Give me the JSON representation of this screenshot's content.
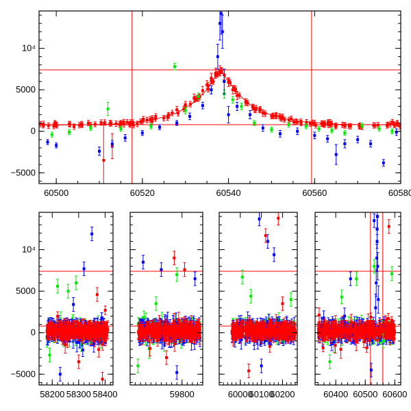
{
  "chart_data": [
    {
      "type": "scatter",
      "title": "",
      "xlabel": "",
      "ylabel": "",
      "xlim": [
        60496,
        60580
      ],
      "ylim": [
        -6300,
        14500
      ],
      "x_ticks": [
        60500,
        60520,
        60540,
        60560,
        60580
      ],
      "y_ticks": [
        {
          "value": -5000,
          "label": "−5000"
        },
        {
          "value": 0,
          "label": "0"
        },
        {
          "value": 5000,
          "label": "5000"
        },
        {
          "value": 10000,
          "label": "10⁴"
        }
      ],
      "hlines": [
        7400,
        800
      ],
      "vlines": [
        60517.6,
        60559.3
      ],
      "line_color": "#ff0000",
      "model_curve": {
        "x": [
          60496,
          60505,
          60515,
          60522,
          60528,
          60532,
          60535,
          60537,
          60538.3,
          60540,
          60542,
          60545,
          60550,
          60556,
          60565,
          60580
        ],
        "y": [
          750,
          770,
          900,
          1300,
          2200,
          3500,
          5000,
          6600,
          7300,
          6000,
          4600,
          3200,
          1900,
          1200,
          850,
          760
        ]
      },
      "series": [
        {
          "color": "#ff0000",
          "x": [
            60497,
            60500,
            60503,
            60506,
            60509,
            60511,
            60513,
            60515,
            60517,
            60520,
            60523,
            60526,
            60528,
            60530,
            60532,
            60534,
            60535,
            60536,
            60537,
            60538,
            60539,
            60540,
            60541,
            60542,
            60544,
            60546,
            60548,
            60550,
            60553,
            60556,
            60559,
            60562,
            60565,
            60568,
            60571,
            60574,
            60577
          ],
          "y": [
            700,
            800,
            900,
            750,
            850,
            -3500,
            -1800,
            1000,
            900,
            1200,
            1500,
            1900,
            2600,
            3200,
            4000,
            4900,
            5600,
            6400,
            7000,
            7300,
            6800,
            5900,
            5000,
            4300,
            3500,
            2700,
            2200,
            1800,
            1400,
            1100,
            900,
            850,
            700,
            600,
            500,
            700,
            800
          ],
          "yerr": [
            300,
            300,
            300,
            300,
            300,
            4500,
            1500,
            300,
            300,
            300,
            300,
            300,
            400,
            400,
            500,
            500,
            500,
            600,
            600,
            600,
            600,
            500,
            500,
            500,
            400,
            400,
            400,
            300,
            300,
            300,
            300,
            300,
            300,
            300,
            300,
            300,
            300
          ]
        },
        {
          "color": "#00ee00",
          "x": [
            60499,
            60503,
            60508,
            60512,
            60515,
            60522,
            60527.5,
            60530,
            60533,
            60536,
            60539,
            60541,
            60543,
            60546,
            60550,
            60554,
            60558,
            60561,
            60564,
            60567,
            60571,
            60575,
            60578
          ],
          "y": [
            -400,
            -100,
            400,
            2700,
            300,
            600,
            7800,
            2500,
            4200,
            5000,
            4500,
            3800,
            3000,
            1000,
            200,
            800,
            600,
            300,
            100,
            -200,
            700,
            300,
            0
          ],
          "yerr": [
            300,
            300,
            300,
            800,
            300,
            300,
            400,
            400,
            400,
            500,
            500,
            400,
            400,
            300,
            300,
            300,
            300,
            300,
            300,
            300,
            300,
            300,
            300
          ]
        },
        {
          "color": "#0000ff",
          "x": [
            60498,
            60500,
            60510,
            60513,
            60516,
            60520,
            60524,
            60528,
            60531,
            60534,
            60536,
            60537.5,
            60538,
            60538.3,
            60538.6,
            60539,
            60540,
            60542,
            60545,
            60548,
            60552,
            60556,
            60560,
            60563,
            60565,
            60567,
            60570,
            60573,
            60576,
            60579
          ],
          "y": [
            -1300,
            -1700,
            -2400,
            -1500,
            -800,
            -200,
            500,
            1000,
            1800,
            3100,
            5000,
            9000,
            13000,
            14200,
            12000,
            6000,
            2000,
            3000,
            2000,
            400,
            -300,
            0,
            -500,
            -900,
            -2800,
            -1500,
            -1000,
            -1500,
            -3800,
            -100
          ],
          "yerr": [
            300,
            300,
            500,
            400,
            400,
            300,
            300,
            300,
            400,
            400,
            500,
            1500,
            2000,
            2500,
            2000,
            1500,
            1000,
            500,
            500,
            400,
            400,
            400,
            400,
            400,
            1200,
            500,
            400,
            400,
            400,
            400
          ]
        }
      ]
    },
    {
      "type": "scatter",
      "title": "",
      "xlabel": "",
      "ylabel": "",
      "segments": [
        {
          "xlim": [
            58150,
            58430
          ],
          "x_ticks": [
            58200,
            58300,
            58400
          ]
        },
        {
          "xlim": [
            59600,
            59880
          ],
          "x_ticks": [
            59800
          ]
        },
        {
          "xlim": [
            59900,
            60270
          ],
          "x_ticks": [
            60000,
            60100,
            60200
          ]
        },
        {
          "xlim": [
            60330,
            60620
          ],
          "x_ticks": [
            60400,
            60500,
            60600
          ]
        }
      ],
      "ylim": [
        -6300,
        14500
      ],
      "y_ticks": [
        {
          "value": -5000,
          "label": "−5000"
        },
        {
          "value": 0,
          "label": "0"
        },
        {
          "value": 5000,
          "label": "5000"
        },
        {
          "value": 10000,
          "label": "10⁴"
        }
      ],
      "hlines": [
        7400,
        800
      ],
      "vlines": [
        60517.6,
        60559.3
      ],
      "line_color": "#ff0000",
      "clusters": [
        {
          "segment": 0,
          "x_from": 58180,
          "x_to": 58410,
          "y_spread": 900
        },
        {
          "segment": 1,
          "x_from": 59630,
          "x_to": 59870,
          "y_spread": 1100
        },
        {
          "segment": 2,
          "x_from": 59960,
          "x_to": 60260,
          "y_spread": 1000
        },
        {
          "segment": 3,
          "x_from": 60340,
          "x_to": 60600,
          "y_spread": 900
        }
      ],
      "outliers": [
        {
          "color": "#0000ff",
          "x": [
            58350,
            58320,
            58280,
            59650,
            59720,
            59850,
            60090,
            60130,
            60160,
            60450,
            60530,
            60540,
            60520,
            58230,
            59780,
            60100
          ],
          "y": [
            11900,
            7700,
            3400,
            8500,
            7600,
            6500,
            13700,
            11000,
            9400,
            6500,
            13500,
            11000,
            -4500,
            -5000,
            -4800,
            -4000
          ]
        },
        {
          "color": "#ff0000",
          "x": [
            58370,
            58300,
            59770,
            59810,
            59740,
            60120,
            60180,
            60200,
            60580,
            60040,
            60220,
            58390
          ],
          "y": [
            4600,
            -3500,
            9000,
            7600,
            -3000,
            11700,
            13800,
            3500,
            12800,
            -4600,
            500,
            -5600
          ]
        },
        {
          "color": "#00ee00",
          "x": [
            58220,
            58290,
            58260,
            58190,
            59700,
            59780,
            59630,
            60010,
            60050,
            60240,
            60420,
            60470,
            60530,
            60590,
            60380,
            60560
          ],
          "y": [
            5600,
            6000,
            5000,
            -2700,
            3500,
            7000,
            -4000,
            6700,
            4400,
            4000,
            4300,
            6500,
            8000,
            7100,
            -3500,
            -1000
          ]
        }
      ]
    }
  ]
}
